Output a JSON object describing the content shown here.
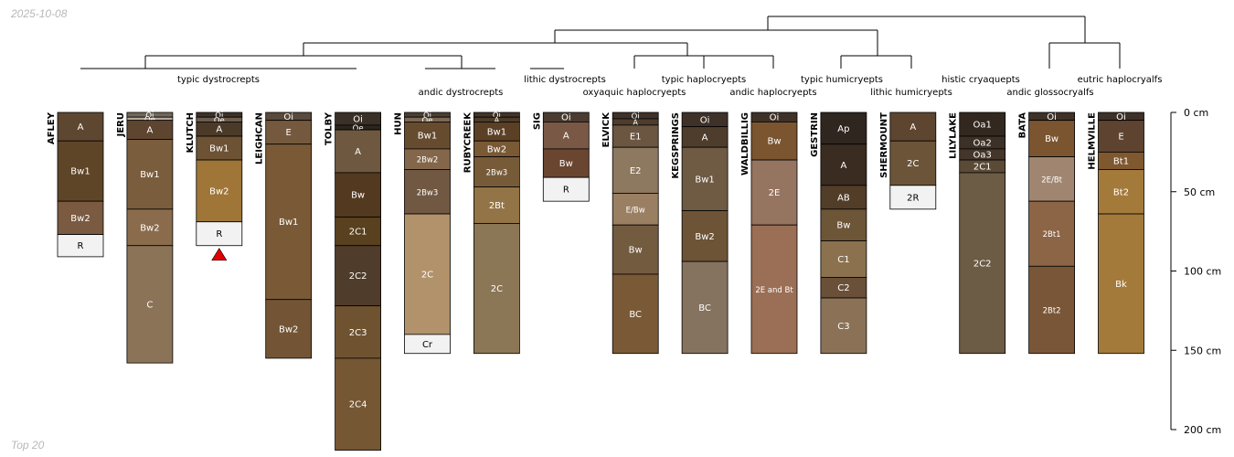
{
  "date_stamp": "2025-10-08",
  "footer_note": "Top 20",
  "depth_axis": {
    "max_cm": 210,
    "ticks": [
      {
        "value": 0,
        "label": "0 cm"
      },
      {
        "value": 50,
        "label": "50 cm"
      },
      {
        "value": 100,
        "label": "100 cm"
      },
      {
        "value": 150,
        "label": "150 cm"
      },
      {
        "value": 200,
        "label": "200 cm"
      }
    ]
  },
  "group_labels": [
    "typic dystrocrepts",
    "andic dystrocrepts",
    "lithic dystrocrepts",
    "oxyaquic haplocryepts",
    "typic haplocryepts",
    "andic haplocryepts",
    "typic humicryepts",
    "lithic humicryepts",
    "histic cryaquepts",
    "andic glossocryalfs",
    "eutric haplocryalfs"
  ],
  "colors": {
    "dark": "#3e3128",
    "brown": "#5d4530",
    "mid": "#6f553b",
    "light": "#8d7860",
    "bright": "#9f7637",
    "pale": "#b1926a",
    "rock": "#f2f2f2",
    "marker": "#e00000"
  },
  "profiles": [
    {
      "name": "AFLEY",
      "horizons": [
        {
          "name": "A",
          "top": 0,
          "bottom": 18,
          "color": "#5e4731"
        },
        {
          "name": "Bw1",
          "top": 18,
          "bottom": 56,
          "color": "#5f4527"
        },
        {
          "name": "Bw2",
          "top": 56,
          "bottom": 77,
          "color": "#7a5a41"
        },
        {
          "name": "R",
          "top": 77,
          "bottom": 91,
          "color": "#f2f2f2"
        }
      ]
    },
    {
      "name": "JERU",
      "horizons": [
        {
          "name": "Oi",
          "top": 0,
          "bottom": 3,
          "color": "#726658"
        },
        {
          "name": "Oe",
          "top": 3,
          "bottom": 5,
          "color": "#b5a99c"
        },
        {
          "name": "A",
          "top": 5,
          "bottom": 17,
          "color": "#5d4530"
        },
        {
          "name": "Bw1",
          "top": 17,
          "bottom": 61,
          "color": "#7a5d3c"
        },
        {
          "name": "Bw2",
          "top": 61,
          "bottom": 84,
          "color": "#8a6c4c"
        },
        {
          "name": "C",
          "top": 84,
          "bottom": 158,
          "color": "#8b7358"
        }
      ]
    },
    {
      "name": "KLUTCH",
      "horizons": [
        {
          "name": "Oi",
          "top": 0,
          "bottom": 3,
          "color": "#3d3228"
        },
        {
          "name": "Oe",
          "top": 3,
          "bottom": 6,
          "color": "#6c5d4f"
        },
        {
          "name": "A",
          "top": 6,
          "bottom": 15,
          "color": "#4c3a28"
        },
        {
          "name": "Bw1",
          "top": 15,
          "bottom": 30,
          "color": "#6d5234"
        },
        {
          "name": "Bw2",
          "top": 30,
          "bottom": 69,
          "color": "#9f7637"
        },
        {
          "name": "R",
          "top": 69,
          "bottom": 84,
          "color": "#f2f2f2"
        }
      ],
      "marker": true
    },
    {
      "name": "LEIGHCAN",
      "horizons": [
        {
          "name": "Oi",
          "top": 0,
          "bottom": 5,
          "color": "#5a4a3c"
        },
        {
          "name": "E",
          "top": 5,
          "bottom": 20,
          "color": "#74593f"
        },
        {
          "name": "Bw1",
          "top": 20,
          "bottom": 118,
          "color": "#7a5a36"
        },
        {
          "name": "Bw2",
          "top": 118,
          "bottom": 155,
          "color": "#735535"
        }
      ]
    },
    {
      "name": "TOLBY",
      "horizons": [
        {
          "name": "Oi",
          "top": 0,
          "bottom": 8,
          "color": "#3b3027"
        },
        {
          "name": "Oe",
          "top": 8,
          "bottom": 11,
          "color": "#2c241d"
        },
        {
          "name": "A",
          "top": 11,
          "bottom": 38,
          "color": "#6e5840"
        },
        {
          "name": "Bw",
          "top": 38,
          "bottom": 66,
          "color": "#53391f"
        },
        {
          "name": "2C1",
          "top": 66,
          "bottom": 84,
          "color": "#59411f"
        },
        {
          "name": "2C2",
          "top": 84,
          "bottom": 122,
          "color": "#503c2a"
        },
        {
          "name": "2C3",
          "top": 122,
          "bottom": 155,
          "color": "#6f5331"
        },
        {
          "name": "2C4",
          "top": 155,
          "bottom": 213,
          "color": "#765734"
        }
      ]
    },
    {
      "name": "HUN",
      "horizons": [
        {
          "name": "Oi",
          "top": 0,
          "bottom": 3,
          "color": "#4b3e32"
        },
        {
          "name": "Oe",
          "top": 3,
          "bottom": 6,
          "color": "#7a6956"
        },
        {
          "name": "Bw1",
          "top": 6,
          "bottom": 23,
          "color": "#674b2f"
        },
        {
          "name": "2Bw2",
          "top": 23,
          "bottom": 36,
          "color": "#84664a"
        },
        {
          "name": "2Bw3",
          "top": 36,
          "bottom": 64,
          "color": "#705842"
        },
        {
          "name": "2C",
          "top": 64,
          "bottom": 140,
          "color": "#b1926a"
        },
        {
          "name": "Cr",
          "top": 140,
          "bottom": 152,
          "color": "#f2f2f2"
        }
      ]
    },
    {
      "name": "RUBYCREEK",
      "horizons": [
        {
          "name": "Oi",
          "top": 0,
          "bottom": 3,
          "color": "#423428"
        },
        {
          "name": "A",
          "top": 3,
          "bottom": 6,
          "color": "#4d3b2a"
        },
        {
          "name": "Bw1",
          "top": 6,
          "bottom": 18,
          "color": "#5b4026"
        },
        {
          "name": "Bw2",
          "top": 18,
          "bottom": 28,
          "color": "#7a5935"
        },
        {
          "name": "2Bw3",
          "top": 28,
          "bottom": 47,
          "color": "#775b39"
        },
        {
          "name": "2Bt",
          "top": 47,
          "bottom": 70,
          "color": "#937446"
        },
        {
          "name": "2C",
          "top": 70,
          "bottom": 152,
          "color": "#8b7656"
        }
      ]
    },
    {
      "name": "SIG",
      "horizons": [
        {
          "name": "Oi",
          "top": 0,
          "bottom": 6,
          "color": "#4a3c30"
        },
        {
          "name": "A",
          "top": 6,
          "bottom": 23,
          "color": "#7a5846"
        },
        {
          "name": "Bw",
          "top": 23,
          "bottom": 41,
          "color": "#6a4530"
        },
        {
          "name": "R",
          "top": 41,
          "bottom": 56,
          "color": "#f2f2f2"
        }
      ]
    },
    {
      "name": "ELVICK",
      "horizons": [
        {
          "name": "Oi",
          "top": 0,
          "bottom": 4,
          "color": "#3e3128"
        },
        {
          "name": "A",
          "top": 4,
          "bottom": 8,
          "color": "#4e3c2d"
        },
        {
          "name": "E1",
          "top": 8,
          "bottom": 22,
          "color": "#6b5641"
        },
        {
          "name": "E2",
          "top": 22,
          "bottom": 51,
          "color": "#8d7860"
        },
        {
          "name": "E/Bw",
          "top": 51,
          "bottom": 71,
          "color": "#9a7f63"
        },
        {
          "name": "Bw",
          "top": 71,
          "bottom": 102,
          "color": "#735b40"
        },
        {
          "name": "BC",
          "top": 102,
          "bottom": 152,
          "color": "#7a5a36"
        }
      ]
    },
    {
      "name": "KEGSPRINGS",
      "horizons": [
        {
          "name": "Oi",
          "top": 0,
          "bottom": 9,
          "color": "#3e3128"
        },
        {
          "name": "A",
          "top": 9,
          "bottom": 22,
          "color": "#4e3c2d"
        },
        {
          "name": "Bw1",
          "top": 22,
          "bottom": 62,
          "color": "#6f5a44"
        },
        {
          "name": "Bw2",
          "top": 62,
          "bottom": 94,
          "color": "#6d5437"
        },
        {
          "name": "BC",
          "top": 94,
          "bottom": 152,
          "color": "#857360"
        }
      ]
    },
    {
      "name": "WALDBILLIG",
      "horizons": [
        {
          "name": "Oi",
          "top": 0,
          "bottom": 6,
          "color": "#3e3128"
        },
        {
          "name": "Bw",
          "top": 6,
          "bottom": 30,
          "color": "#7a5530"
        },
        {
          "name": "2E",
          "top": 30,
          "bottom": 71,
          "color": "#957460"
        },
        {
          "name": "2E and Bt",
          "top": 71,
          "bottom": 152,
          "color": "#9b6f55"
        }
      ]
    },
    {
      "name": "GESTRIN",
      "horizons": [
        {
          "name": "Ap",
          "top": 0,
          "bottom": 20,
          "color": "#302620"
        },
        {
          "name": "A",
          "top": 20,
          "bottom": 46,
          "color": "#3a2c20"
        },
        {
          "name": "AB",
          "top": 46,
          "bottom": 61,
          "color": "#523d28"
        },
        {
          "name": "Bw",
          "top": 61,
          "bottom": 81,
          "color": "#6d5537"
        },
        {
          "name": "C1",
          "top": 81,
          "bottom": 104,
          "color": "#8c714e"
        },
        {
          "name": "C2",
          "top": 104,
          "bottom": 117,
          "color": "#6a5038"
        },
        {
          "name": "C3",
          "top": 117,
          "bottom": 152,
          "color": "#8b7257"
        }
      ]
    },
    {
      "name": "SHERMOUNT",
      "horizons": [
        {
          "name": "A",
          "top": 0,
          "bottom": 18,
          "color": "#5d4530"
        },
        {
          "name": "2C",
          "top": 18,
          "bottom": 46,
          "color": "#6c5439"
        },
        {
          "name": "2R",
          "top": 46,
          "bottom": 61,
          "color": "#f2f2f2"
        }
      ]
    },
    {
      "name": "LILYLAKE",
      "horizons": [
        {
          "name": "Oa1",
          "top": 0,
          "bottom": 15,
          "color": "#33281f"
        },
        {
          "name": "Oa2",
          "top": 15,
          "bottom": 23,
          "color": "#3d3027"
        },
        {
          "name": "Oa3",
          "top": 23,
          "bottom": 30,
          "color": "#44362a"
        },
        {
          "name": "2C1",
          "top": 30,
          "bottom": 38,
          "color": "#5b4a36"
        },
        {
          "name": "2C2",
          "top": 38,
          "bottom": 152,
          "color": "#6c5b45"
        }
      ]
    },
    {
      "name": "BATA",
      "horizons": [
        {
          "name": "Oi",
          "top": 0,
          "bottom": 5,
          "color": "#3e3128"
        },
        {
          "name": "Bw",
          "top": 5,
          "bottom": 28,
          "color": "#7a5530"
        },
        {
          "name": "2E/Bt",
          "top": 28,
          "bottom": 56,
          "color": "#a08670"
        },
        {
          "name": "2Bt1",
          "top": 56,
          "bottom": 97,
          "color": "#8c6446"
        },
        {
          "name": "2Bt2",
          "top": 97,
          "bottom": 152,
          "color": "#7a5638"
        }
      ]
    },
    {
      "name": "HELMVILLE",
      "horizons": [
        {
          "name": "Oi",
          "top": 0,
          "bottom": 5,
          "color": "#3e3128"
        },
        {
          "name": "E",
          "top": 5,
          "bottom": 25,
          "color": "#5e4330"
        },
        {
          "name": "Bt1",
          "top": 25,
          "bottom": 36,
          "color": "#7f5830"
        },
        {
          "name": "Bt2",
          "top": 36,
          "bottom": 64,
          "color": "#a47a3a"
        },
        {
          "name": "Bk",
          "top": 64,
          "bottom": 152,
          "color": "#a47a3a"
        }
      ]
    }
  ]
}
